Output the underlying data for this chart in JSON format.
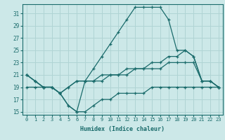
{
  "xlabel": "Humidex (Indice chaleur)",
  "bg_color": "#cce8e8",
  "grid_color": "#b0d4d4",
  "line_color": "#1a6b6b",
  "xlim": [
    -0.5,
    23.5
  ],
  "ylim": [
    14.5,
    32.5
  ],
  "yticks": [
    15,
    17,
    19,
    21,
    23,
    25,
    27,
    29,
    31
  ],
  "xticks": [
    0,
    1,
    2,
    3,
    4,
    5,
    6,
    7,
    8,
    9,
    10,
    11,
    12,
    13,
    14,
    15,
    16,
    17,
    18,
    19,
    20,
    21,
    22,
    23
  ],
  "lines": [
    {
      "x": [
        0,
        1,
        2,
        3,
        4,
        5,
        6,
        7,
        8,
        9,
        10,
        11,
        12,
        13,
        14,
        15,
        16,
        17,
        18,
        19,
        20,
        21,
        22,
        23
      ],
      "y": [
        21,
        20,
        19,
        19,
        18,
        16,
        15,
        20,
        22,
        24,
        26,
        28,
        30,
        32,
        32,
        32,
        32,
        30,
        25,
        25,
        24,
        20,
        20,
        19
      ]
    },
    {
      "x": [
        0,
        1,
        2,
        3,
        4,
        5,
        6,
        7,
        8,
        9,
        10,
        11,
        12,
        13,
        14,
        15,
        16,
        17,
        18,
        19,
        20,
        21,
        22,
        23
      ],
      "y": [
        21,
        20,
        19,
        19,
        18,
        19,
        20,
        20,
        20,
        21,
        21,
        21,
        22,
        22,
        22,
        23,
        23,
        24,
        24,
        25,
        24,
        20,
        20,
        19
      ]
    },
    {
      "x": [
        0,
        1,
        2,
        3,
        4,
        5,
        6,
        7,
        8,
        9,
        10,
        11,
        12,
        13,
        14,
        15,
        16,
        17,
        18,
        19,
        20,
        21,
        22,
        23
      ],
      "y": [
        21,
        20,
        19,
        19,
        18,
        19,
        20,
        20,
        20,
        20,
        21,
        21,
        21,
        22,
        22,
        22,
        22,
        23,
        23,
        23,
        23,
        20,
        20,
        19
      ]
    },
    {
      "x": [
        0,
        1,
        2,
        3,
        4,
        5,
        6,
        7,
        8,
        9,
        10,
        11,
        12,
        13,
        14,
        15,
        16,
        17,
        18,
        19,
        20,
        21,
        22,
        23
      ],
      "y": [
        19,
        19,
        19,
        19,
        18,
        16,
        15,
        15,
        16,
        17,
        17,
        18,
        18,
        18,
        18,
        19,
        19,
        19,
        19,
        19,
        19,
        19,
        19,
        19
      ]
    }
  ]
}
